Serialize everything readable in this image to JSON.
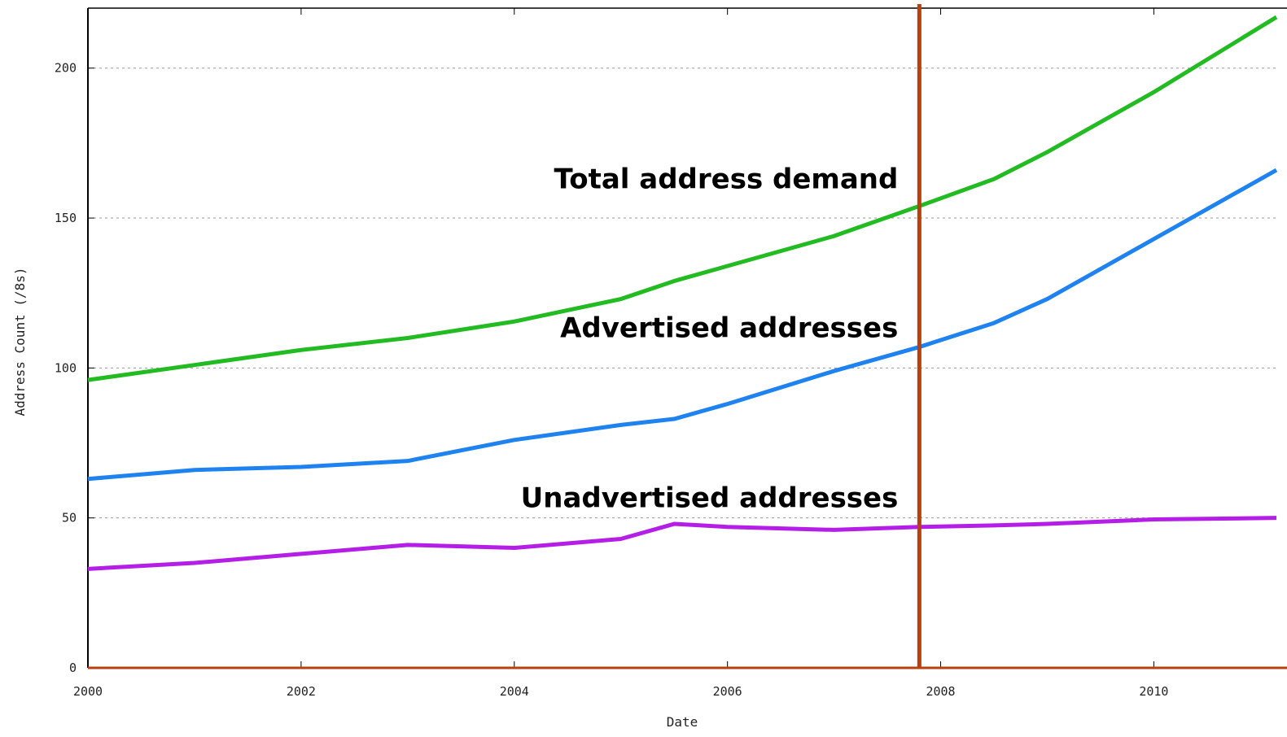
{
  "chart_data": {
    "type": "line",
    "x_label": "Date",
    "y_label": "Address Count (/8s)",
    "x": [
      2000,
      2001,
      2002,
      2003,
      2004,
      2005,
      2005.5,
      2006,
      2007,
      2007.8,
      2008.5,
      2009,
      2010,
      2011.15
    ],
    "series": [
      {
        "name": "Total address demand",
        "color": "#22bb22",
        "values": [
          96,
          101,
          106,
          110,
          115.5,
          123,
          129,
          134,
          144,
          154,
          163,
          172,
          192,
          217
        ]
      },
      {
        "name": "Advertised addresses",
        "color": "#1e82f0",
        "values": [
          63,
          66,
          67,
          69,
          76,
          81,
          83,
          88,
          99,
          107,
          115,
          123,
          143,
          166
        ]
      },
      {
        "name": "Unadvertised addresses",
        "color": "#b41ee6",
        "values": [
          33,
          35,
          38,
          41,
          40,
          43,
          48,
          47,
          46,
          47,
          47.5,
          48,
          49.5,
          50
        ]
      }
    ],
    "xlim": [
      2000,
      2011.15
    ],
    "ylim": [
      0,
      220
    ],
    "xticks": [
      2000,
      2002,
      2004,
      2006,
      2008,
      2010
    ],
    "yticks": [
      0,
      50,
      100,
      150,
      200
    ],
    "grid": true,
    "vline": 2007.8,
    "vline_color": "#b8400c"
  }
}
